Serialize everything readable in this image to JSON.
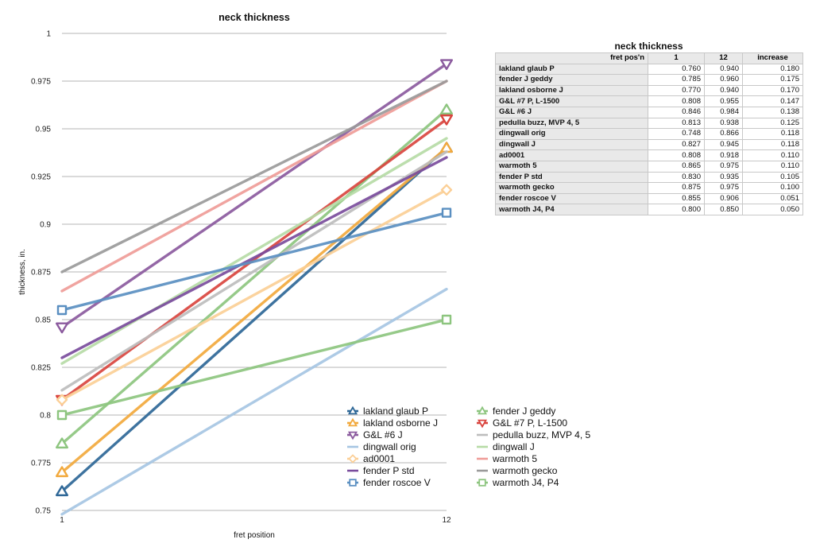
{
  "chart_data": [
    {
      "type": "line",
      "title": "neck thickness",
      "xlabel": "fret position",
      "ylabel": "thickness, in.",
      "categories": [
        "1",
        "12"
      ],
      "ylim": [
        0.75,
        1
      ],
      "yticks": [
        "0.75",
        "0.775",
        "0.8",
        "0.825",
        "0.85",
        "0.875",
        "0.9",
        "0.925",
        "0.95",
        "0.975",
        "1"
      ],
      "grid": true,
      "legend_position": "bottom-right",
      "series": [
        {
          "name": "lakland glaub P",
          "values": [
            0.76,
            0.94
          ],
          "color": "#2e6797",
          "marker": "triangle-up"
        },
        {
          "name": "fender J geddy",
          "values": [
            0.785,
            0.96
          ],
          "color": "#8dc57f",
          "marker": "triangle-up"
        },
        {
          "name": "lakland osborne J",
          "values": [
            0.77,
            0.94
          ],
          "color": "#f2a93d",
          "marker": "triangle-up"
        },
        {
          "name": "G&L #7 P, L-1500",
          "values": [
            0.808,
            0.955
          ],
          "color": "#d9453f",
          "marker": "triangle-down"
        },
        {
          "name": "G&L #6 J",
          "values": [
            0.846,
            0.984
          ],
          "color": "#8b5a9e",
          "marker": "triangle-down"
        },
        {
          "name": "pedulla buzz, MVP 4, 5",
          "values": [
            0.813,
            0.938
          ],
          "color": "#bdbdbd",
          "marker": "none"
        },
        {
          "name": "dingwall orig",
          "values": [
            0.748,
            0.866
          ],
          "color": "#a6c6e3",
          "marker": "none"
        },
        {
          "name": "dingwall J",
          "values": [
            0.827,
            0.945
          ],
          "color": "#b6dba6",
          "marker": "none"
        },
        {
          "name": "ad0001",
          "values": [
            0.808,
            0.918
          ],
          "color": "#fbcf96",
          "marker": "diamond"
        },
        {
          "name": "warmoth 5",
          "values": [
            0.865,
            0.975
          ],
          "color": "#ef9c98",
          "marker": "none"
        },
        {
          "name": "fender P std",
          "values": [
            0.83,
            0.935
          ],
          "color": "#7a4c9c",
          "marker": "none"
        },
        {
          "name": "warmoth gecko",
          "values": [
            0.875,
            0.975
          ],
          "color": "#9a9a9a",
          "marker": "none"
        },
        {
          "name": "fender roscoe V",
          "values": [
            0.855,
            0.906
          ],
          "color": "#5a8fc1",
          "marker": "square"
        },
        {
          "name": "warmoth J4, P4",
          "values": [
            0.8,
            0.85
          ],
          "color": "#8dc57f",
          "marker": "square"
        }
      ],
      "data_x_start": [
        0.76,
        0.785,
        0.77,
        0.808,
        0.846,
        0.813,
        0.748,
        0.827,
        0.808,
        0.865,
        0.83,
        0.875,
        0.855,
        0.8
      ]
    },
    {
      "type": "table",
      "title": "neck thickness",
      "columns": [
        "fret pos'n",
        "1",
        "12",
        "increase"
      ],
      "rows": [
        [
          "lakland glaub P",
          "0.760",
          "0.940",
          "0.180"
        ],
        [
          "fender J geddy",
          "0.785",
          "0.960",
          "0.175"
        ],
        [
          "lakland osborne J",
          "0.770",
          "0.940",
          "0.170"
        ],
        [
          "G&L #7 P, L-1500",
          "0.808",
          "0.955",
          "0.147"
        ],
        [
          "G&L #6 J",
          "0.846",
          "0.984",
          "0.138"
        ],
        [
          "pedulla buzz, MVP 4, 5",
          "0.813",
          "0.938",
          "0.125"
        ],
        [
          "dingwall orig",
          "0.748",
          "0.866",
          "0.118"
        ],
        [
          "dingwall J",
          "0.827",
          "0.945",
          "0.118"
        ],
        [
          "ad0001",
          "0.808",
          "0.918",
          "0.110"
        ],
        [
          "warmoth 5",
          "0.865",
          "0.975",
          "0.110"
        ],
        [
          "fender P std",
          "0.830",
          "0.935",
          "0.105"
        ],
        [
          "warmoth gecko",
          "0.875",
          "0.975",
          "0.100"
        ],
        [
          "fender roscoe V",
          "0.855",
          "0.906",
          "0.051"
        ],
        [
          "warmoth J4, P4",
          "0.800",
          "0.850",
          "0.050"
        ]
      ]
    }
  ]
}
